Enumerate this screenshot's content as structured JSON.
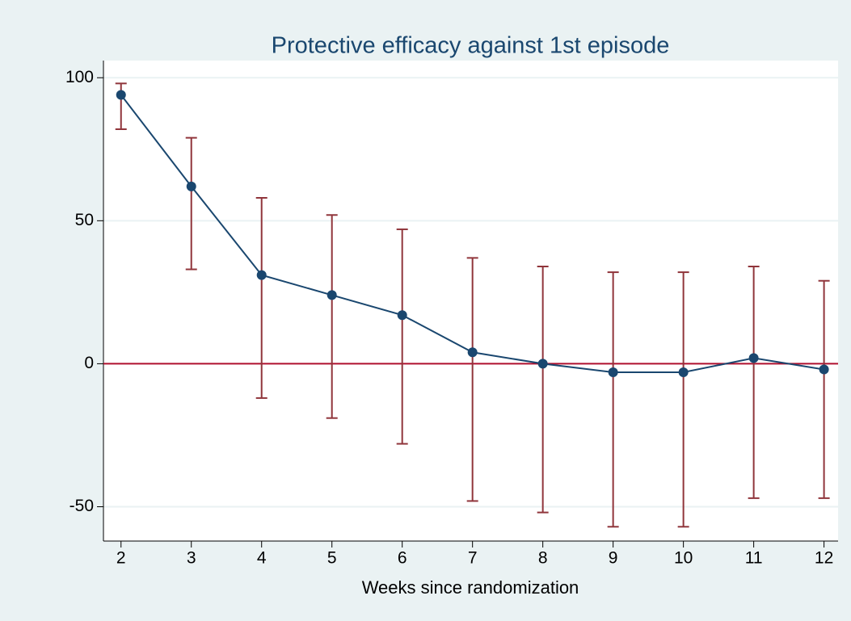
{
  "chart_data": {
    "type": "line",
    "title": "Protective efficacy against 1st episode",
    "x_label": "Weeks since randomization",
    "x": [
      2,
      3,
      4,
      5,
      6,
      7,
      8,
      9,
      10,
      11,
      12
    ],
    "values": [
      94,
      62,
      31,
      24,
      17,
      4,
      0,
      -3,
      -3,
      2,
      -2
    ],
    "lower": [
      82,
      33,
      -12,
      -19,
      -28,
      -48,
      -52,
      -57,
      -57,
      -47,
      -47
    ],
    "upper": [
      98,
      79,
      58,
      52,
      47,
      37,
      34,
      32,
      32,
      34,
      29
    ],
    "color": "#1a476f",
    "errorbar_color": "#90353b",
    "hline": {
      "value": 0,
      "color": "#b0102e"
    },
    "xlim": [
      1.75,
      12.2
    ],
    "ylim": [
      -62,
      106
    ],
    "xticks": [
      2,
      3,
      4,
      5,
      6,
      7,
      8,
      9,
      10,
      11,
      12
    ],
    "yticks": [
      -50,
      0,
      50,
      100
    ],
    "grid": true
  }
}
